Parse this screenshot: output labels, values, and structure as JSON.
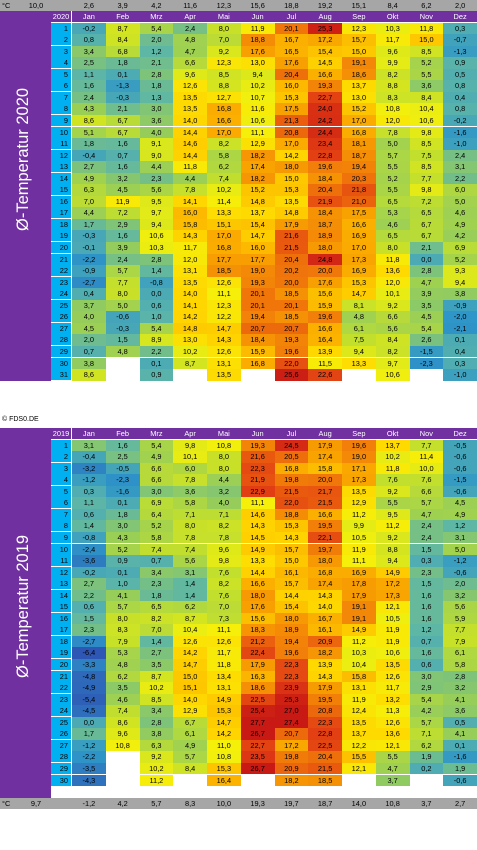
{
  "chart_data": [
    {
      "type": "heatmap",
      "title": "Ø-Temperatur 2020",
      "unit_label": "°C",
      "year_label": "2020",
      "months": [
        "Jan",
        "Feb",
        "Mrz",
        "Apr",
        "Mai",
        "Jun",
        "Jul",
        "Aug",
        "Sep",
        "Okt",
        "Nov",
        "Dez"
      ],
      "monthly_means": [
        "10,0",
        "2,6",
        "3,9",
        "4,2",
        "11,6",
        "12,3",
        "15,6",
        "18,8",
        "19,2",
        "15,1",
        "8,4",
        "6,2",
        "2,0"
      ],
      "days": [
        [
          "-0,2",
          "8,7",
          "5,4",
          "2,4",
          "8,0",
          "11,9",
          "20,1",
          "25,3",
          "12,3",
          "10,3",
          "11,8",
          "0,3"
        ],
        [
          "0,8",
          "8,4",
          "2,0",
          "4,8",
          "7,0",
          "18,8",
          "16,7",
          "17,2",
          "15,7",
          "11,7",
          "15,0",
          "-0,7"
        ],
        [
          "3,4",
          "6,8",
          "1,2",
          "4,7",
          "9,2",
          "17,6",
          "16,5",
          "15,4",
          "15,0",
          "9,6",
          "8,5",
          "-1,3"
        ],
        [
          "2,5",
          "1,8",
          "2,1",
          "6,6",
          "12,3",
          "13,0",
          "17,6",
          "14,5",
          "19,1",
          "9,9",
          "5,2",
          "0,9"
        ],
        [
          "1,1",
          "0,1",
          "2,8",
          "9,6",
          "8,5",
          "9,4",
          "20,4",
          "16,6",
          "18,6",
          "8,2",
          "5,5",
          "0,5"
        ],
        [
          "1,6",
          "-1,3",
          "1,8",
          "12,6",
          "8,8",
          "10,2",
          "16,0",
          "19,3",
          "13,7",
          "8,8",
          "3,6",
          "0,8"
        ],
        [
          "2,4",
          "-0,3",
          "1,3",
          "13,5",
          "12,7",
          "10,7",
          "15,3",
          "22,7",
          "13,0",
          "8,3",
          "8,4",
          "0,4"
        ],
        [
          "4,3",
          "2,1",
          "3,0",
          "13,5",
          "16,8",
          "11,6",
          "17,5",
          "24,0",
          "15,2",
          "10,8",
          "10,4",
          "0,8"
        ],
        [
          "8,6",
          "6,7",
          "3,6",
          "14,0",
          "16,6",
          "10,6",
          "21,3",
          "24,2",
          "17,0",
          "12,0",
          "10,6",
          "-0,2"
        ],
        [
          "5,1",
          "6,7",
          "4,0",
          "14,4",
          "17,0",
          "11,1",
          "20,8",
          "24,4",
          "16,8",
          "7,8",
          "9,8",
          "-1,6"
        ],
        [
          "1,8",
          "1,6",
          "9,1",
          "14,6",
          "8,2",
          "12,9",
          "17,0",
          "23,4",
          "18,1",
          "5,0",
          "8,5",
          "-1,0"
        ],
        [
          "-0,4",
          "0,7",
          "9,0",
          "14,4",
          "5,8",
          "18,2",
          "14,2",
          "22,8",
          "18,7",
          "5,7",
          "7,5",
          "2,4"
        ],
        [
          "2,7",
          "1,6",
          "4,4",
          "11,8",
          "6,2",
          "17,4",
          "18,0",
          "19,6",
          "19,4",
          "5,5",
          "8,5",
          "3,1"
        ],
        [
          "4,9",
          "3,2",
          "2,3",
          "4,4",
          "7,4",
          "18,2",
          "15,0",
          "18,4",
          "20,3",
          "5,2",
          "7,7",
          "2,2"
        ],
        [
          "6,3",
          "4,5",
          "5,6",
          "7,8",
          "10,2",
          "15,2",
          "15,3",
          "20,4",
          "21,8",
          "5,5",
          "9,8",
          "6,0"
        ],
        [
          "7,0",
          "11,9",
          "9,5",
          "14,1",
          "11,4",
          "14,8",
          "13,5",
          "21,9",
          "21,0",
          "6,5",
          "7,2",
          "5,0"
        ],
        [
          "4,4",
          "7,2",
          "9,7",
          "16,0",
          "13,3",
          "13,7",
          "14,8",
          "18,4",
          "17,5",
          "5,3",
          "6,5",
          "4,6"
        ],
        [
          "1,7",
          "2,9",
          "9,4",
          "15,8",
          "15,1",
          "15,4",
          "17,9",
          "18,7",
          "16,6",
          "4,6",
          "6,7",
          "4,9"
        ],
        [
          "-0,3",
          "1,6",
          "10,6",
          "14,3",
          "17,0",
          "14,7",
          "21,6",
          "18,9",
          "16,9",
          "6,5",
          "6,7",
          "4,2"
        ],
        [
          "-0,1",
          "3,9",
          "10,3",
          "11,7",
          "16,8",
          "16,0",
          "21,5",
          "18,0",
          "17,0",
          "8,0",
          "2,1",
          "6,9"
        ],
        [
          "-2,2",
          "2,4",
          "2,8",
          "12,0",
          "17,7",
          "17,7",
          "20,4",
          "24,8",
          "17,3",
          "11,8",
          "0,0",
          "5,2"
        ],
        [
          "-0,9",
          "5,7",
          "1,4",
          "13,1",
          "18,5",
          "19,0",
          "20,2",
          "20,0",
          "16,9",
          "13,6",
          "2,8",
          "9,3"
        ],
        [
          "-2,7",
          "7,7",
          "-0,8",
          "13,5",
          "12,6",
          "19,3",
          "20,0",
          "17,6",
          "15,3",
          "12,0",
          "4,7",
          "9,4"
        ],
        [
          "0,4",
          "8,0",
          "0,0",
          "14,0",
          "11,1",
          "20,1",
          "18,5",
          "15,6",
          "14,7",
          "10,1",
          "3,9",
          "3,8"
        ],
        [
          "3,7",
          "5,0",
          "0,6",
          "14,1",
          "12,3",
          "20,1",
          "20,1",
          "15,9",
          "8,1",
          "9,2",
          "3,5",
          "-0,9"
        ],
        [
          "4,0",
          "-0,6",
          "1,0",
          "14,2",
          "12,2",
          "19,4",
          "18,5",
          "19,6",
          "4,8",
          "6,6",
          "4,5",
          "-2,0"
        ],
        [
          "4,5",
          "-0,3",
          "5,4",
          "14,8",
          "14,7",
          "20,7",
          "20,7",
          "16,6",
          "6,1",
          "5,6",
          "5,4",
          "-2,1"
        ],
        [
          "2,0",
          "1,5",
          "8,9",
          "13,0",
          "14,3",
          "18,4",
          "19,3",
          "16,4",
          "7,5",
          "8,4",
          "2,6",
          "0,1"
        ],
        [
          "0,7",
          "4,8",
          "2,2",
          "10,2",
          "12,6",
          "15,9",
          "19,6",
          "13,9",
          "9,4",
          "8,2",
          "-1,5",
          "0,4"
        ],
        [
          "3,8",
          "",
          "0,1",
          "8,7",
          "13,1",
          "16,8",
          "22,0",
          "11,5",
          "13,3",
          "9,7",
          "-2,3",
          "0,3"
        ],
        [
          "8,6",
          "",
          "0,9",
          "",
          "13,5",
          "",
          "25,6",
          "22,6",
          "",
          "10,6",
          "",
          "-1,0"
        ]
      ]
    },
    {
      "type": "heatmap",
      "title": "Ø-Temperatur 2019",
      "unit_label": "°C",
      "year_label": "2019",
      "months": [
        "Jan",
        "Feb",
        "Mrz",
        "Apr",
        "Mai",
        "Jun",
        "Jul",
        "Aug",
        "Sep",
        "Okt",
        "Nov",
        "Dez"
      ],
      "monthly_means": [
        "9,7",
        "-1,2",
        "4,2",
        "5,7",
        "8,3",
        "10,0",
        "19,3",
        "19,7",
        "18,7",
        "14,0",
        "10,8",
        "3,7",
        "2,7"
      ],
      "days": [
        [
          "3,1",
          "1,6",
          "5,4",
          "9,8",
          "10,8",
          "19,3",
          "24,5",
          "17,9",
          "19,6",
          "13,7",
          "7,7",
          "-0,5"
        ],
        [
          "-0,4",
          "2,5",
          "4,9",
          "10,1",
          "8,0",
          "21,6",
          "20,5",
          "17,4",
          "19,0",
          "10,2",
          "11,4",
          "-0,6"
        ],
        [
          "-3,2",
          "-0,5",
          "6,6",
          "6,0",
          "8,0",
          "22,3",
          "16,8",
          "15,8",
          "17,1",
          "11,8",
          "10,0",
          "-0,6"
        ],
        [
          "-1,2",
          "-2,3",
          "6,6",
          "7,8",
          "4,4",
          "21,9",
          "19,8",
          "20,0",
          "17,3",
          "7,6",
          "7,6",
          "-1,5"
        ],
        [
          "0,3",
          "-1,6",
          "3,0",
          "3,6",
          "3,2",
          "22,9",
          "21,5",
          "21,7",
          "13,5",
          "9,2",
          "6,6",
          "-0,6"
        ],
        [
          "1,1",
          "0,1",
          "6,9",
          "5,8",
          "4,0",
          "11,1",
          "22,0",
          "21,5",
          "12,9",
          "5,5",
          "5,7",
          "4,5"
        ],
        [
          "0,6",
          "1,8",
          "6,4",
          "7,1",
          "7,1",
          "14,6",
          "18,8",
          "16,6",
          "11,2",
          "9,5",
          "4,7",
          "4,9"
        ],
        [
          "1,4",
          "3,0",
          "5,2",
          "8,0",
          "8,2",
          "14,3",
          "15,3",
          "19,5",
          "9,9",
          "11,2",
          "2,4",
          "1,2"
        ],
        [
          "-0,8",
          "4,3",
          "5,8",
          "7,8",
          "7,8",
          "14,5",
          "14,3",
          "22,1",
          "10,5",
          "9,2",
          "2,4",
          "3,1"
        ],
        [
          "-2,4",
          "5,2",
          "7,4",
          "7,4",
          "9,6",
          "14,9",
          "15,7",
          "19,7",
          "11,9",
          "8,8",
          "1,5",
          "5,0"
        ],
        [
          "-3,6",
          "0,9",
          "0,7",
          "5,6",
          "9,8",
          "13,3",
          "15,0",
          "18,0",
          "11,1",
          "9,4",
          "0,3",
          "-1,2"
        ],
        [
          "-0,2",
          "0,1",
          "3,4",
          "3,1",
          "7,6",
          "14,4",
          "16,1",
          "16,8",
          "16,9",
          "14,9",
          "2,3",
          "-0,6"
        ],
        [
          "2,7",
          "1,0",
          "2,3",
          "1,4",
          "8,2",
          "16,6",
          "15,7",
          "17,4",
          "17,8",
          "17,2",
          "1,5",
          "2,0"
        ],
        [
          "2,2",
          "4,1",
          "1,8",
          "1,4",
          "7,6",
          "18,0",
          "14,4",
          "14,3",
          "17,9",
          "17,3",
          "1,6",
          "3,2"
        ],
        [
          "0,6",
          "5,7",
          "6,5",
          "6,2",
          "7,0",
          "17,6",
          "15,4",
          "14,0",
          "19,1",
          "12,1",
          "1,6",
          "5,6"
        ],
        [
          "1,5",
          "8,0",
          "8,2",
          "8,7",
          "7,3",
          "15,6",
          "18,0",
          "16,7",
          "19,1",
          "10,5",
          "1,6",
          "5,9"
        ],
        [
          "2,3",
          "8,3",
          "7,0",
          "10,4",
          "11,1",
          "18,3",
          "18,9",
          "16,1",
          "14,9",
          "11,9",
          "1,2",
          "7,7"
        ],
        [
          "-2,7",
          "7,9",
          "1,4",
          "12,6",
          "12,6",
          "21,2",
          "19,4",
          "20,9",
          "11,2",
          "11,9",
          "0,7",
          "7,9"
        ],
        [
          "-6,4",
          "5,3",
          "2,7",
          "14,2",
          "11,7",
          "22,4",
          "19,6",
          "18,2",
          "10,3",
          "10,6",
          "1,6",
          "6,1"
        ],
        [
          "-3,3",
          "4,8",
          "3,5",
          "14,7",
          "11,8",
          "17,9",
          "22,3",
          "13,9",
          "10,4",
          "13,5",
          "0,6",
          "5,8"
        ],
        [
          "-4,8",
          "6,2",
          "8,7",
          "15,0",
          "13,4",
          "16,3",
          "22,3",
          "14,3",
          "15,8",
          "12,6",
          "3,0",
          "2,8"
        ],
        [
          "-4,9",
          "3,5",
          "10,2",
          "15,1",
          "13,1",
          "18,6",
          "23,9",
          "17,9",
          "13,1",
          "11,7",
          "2,9",
          "3,2"
        ],
        [
          "-5,4",
          "4,6",
          "8,5",
          "14,0",
          "14,9",
          "22,5",
          "25,3",
          "19,5",
          "11,9",
          "13,2",
          "5,4",
          "4,1"
        ],
        [
          "-4,5",
          "7,4",
          "3,4",
          "12,9",
          "15,3",
          "25,4",
          "27,0",
          "20,8",
          "12,4",
          "11,3",
          "4,2",
          "3,6"
        ],
        [
          "0,0",
          "8,6",
          "2,8",
          "6,7",
          "14,7",
          "27,7",
          "27,4",
          "22,3",
          "13,5",
          "12,6",
          "5,7",
          "0,5"
        ],
        [
          "1,7",
          "9,6",
          "3,8",
          "6,1",
          "14,2",
          "26,7",
          "20,7",
          "22,8",
          "13,7",
          "13,6",
          "7,1",
          "4,1"
        ],
        [
          "-1,2",
          "10,8",
          "6,3",
          "4,9",
          "11,0",
          "22,7",
          "17,2",
          "22,5",
          "12,2",
          "12,1",
          "6,2",
          "0,1"
        ],
        [
          "-2,2",
          "",
          "9,2",
          "5,7",
          "10,8",
          "23,5",
          "19,8",
          "20,4",
          "15,5",
          "5,5",
          "1,9",
          "-1,6"
        ],
        [
          "-3,5",
          "",
          "10,2",
          "8,4",
          "15,3",
          "26,7",
          "20,9",
          "21,5",
          "12,1",
          "4,7",
          "0,2",
          "1,9"
        ],
        [
          "-4,3",
          "",
          "11,2",
          "",
          "16,4",
          "",
          "18,2",
          "18,5",
          "",
          "3,7",
          "",
          "-0,6"
        ],
        [
          "",
          "",
          "",
          "",
          "",
          "",
          "",
          "",
          "",
          "",
          "",
          ""
        ]
      ]
    }
  ],
  "copyright": "© FDS0.DE"
}
